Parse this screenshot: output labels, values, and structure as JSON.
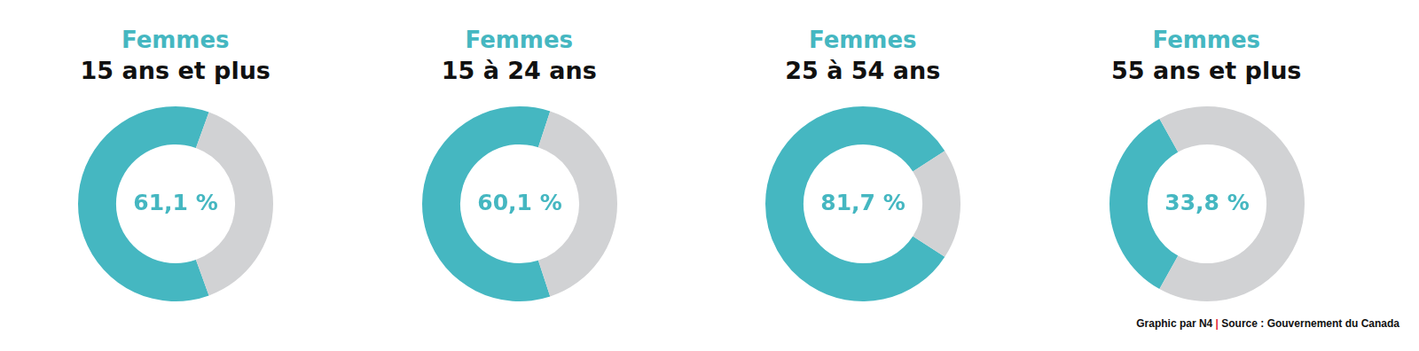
{
  "chart_data": [
    {
      "type": "doughnut",
      "title": "Femmes",
      "subtitle": "15 ans et plus",
      "values": [
        61.1,
        38.9
      ],
      "value_labels": [
        "61,1 %",
        null
      ],
      "colors": [
        "#45b7c1",
        "#d1d2d4"
      ]
    },
    {
      "type": "doughnut",
      "title": "Femmes",
      "subtitle": "15 à 24 ans",
      "values": [
        60.1,
        39.9
      ],
      "value_labels": [
        "60,1 %",
        null
      ],
      "colors": [
        "#45b7c1",
        "#d1d2d4"
      ]
    },
    {
      "type": "doughnut",
      "title": "Femmes",
      "subtitle": "25 à 54 ans",
      "values": [
        81.7,
        18.3
      ],
      "value_labels": [
        "81,7 %",
        null
      ],
      "colors": [
        "#45b7c1",
        "#d1d2d4"
      ]
    },
    {
      "type": "doughnut",
      "title": "Femmes",
      "subtitle": "55 ans et plus",
      "values": [
        33.8,
        66.2
      ],
      "value_labels": [
        "33,8 %",
        null
      ],
      "colors": [
        "#45b7c1",
        "#d1d2d4"
      ]
    }
  ],
  "footer": [
    "Graphic par N4",
    "|",
    "Source : Gouvernement du Canada"
  ]
}
